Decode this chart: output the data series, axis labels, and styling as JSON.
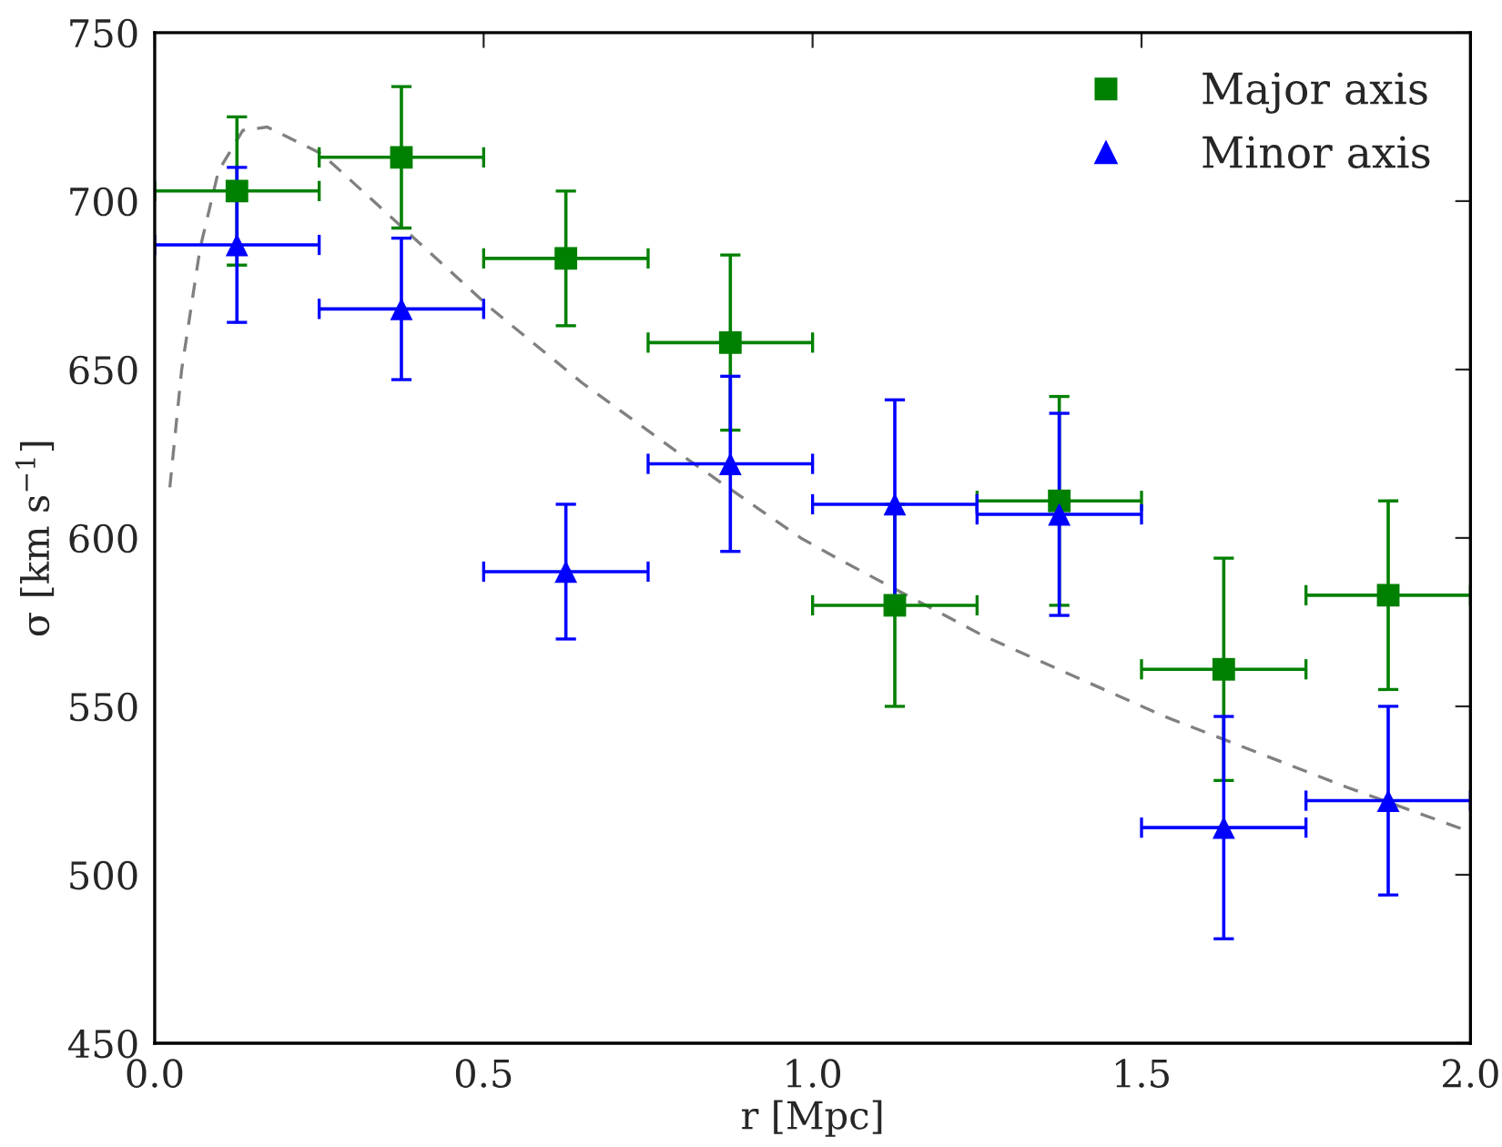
{
  "chart_data": {
    "type": "scatter",
    "xlabel": "r [Mpc]",
    "ylabel": "σ [km s$^{−1}$]",
    "xlim": [
      0,
      2
    ],
    "ylim": [
      450,
      750
    ],
    "xticks": [
      {
        "value": 0,
        "label": "0.0"
      },
      {
        "value": 0.5,
        "label": "0.5"
      },
      {
        "value": 1,
        "label": "1.0"
      },
      {
        "value": 1.5,
        "label": "1.5"
      },
      {
        "value": 2,
        "label": "2.0"
      }
    ],
    "yticks": [
      450,
      500,
      550,
      600,
      650,
      700,
      750
    ],
    "grid": false,
    "legend": "top right",
    "series": [
      {
        "name": "Major axis",
        "marker": "square",
        "color": "#008000",
        "x": [
          0.125,
          0.375,
          0.625,
          0.875,
          1.125,
          1.375,
          1.625,
          1.875
        ],
        "values": [
          703,
          713,
          683,
          658,
          580,
          611,
          561,
          583
        ],
        "errors": [
          22,
          21,
          20,
          26,
          30,
          31,
          33,
          28
        ],
        "xerrors": [
          0.125,
          0.125,
          0.125,
          0.125,
          0.125,
          0.125,
          0.125,
          0.125
        ]
      },
      {
        "name": "Minor axis",
        "marker": "triangle",
        "color": "#0000ff",
        "x": [
          0.125,
          0.375,
          0.625,
          0.875,
          1.125,
          1.375,
          1.625,
          1.875
        ],
        "values": [
          687,
          668,
          590,
          622,
          610,
          607,
          514,
          522
        ],
        "errors": [
          23,
          21,
          20,
          26,
          31,
          30,
          33,
          28
        ],
        "xerrors": [
          0.125,
          0.125,
          0.125,
          0.125,
          0.125,
          0.125,
          0.125,
          0.125
        ]
      },
      {
        "type": "line",
        "line_style": "dashed",
        "marker": "none",
        "color": "#808080",
        "x": [
          0.023,
          0.041,
          0.069,
          0.097,
          0.134,
          0.171,
          0.254,
          0.383,
          0.512,
          0.65,
          0.798,
          0.908,
          0.982,
          1.037,
          1.259,
          1.535,
          1.812,
          1.996
        ],
        "values": [
          615,
          650,
          686,
          709,
          721,
          722,
          714,
          691,
          668,
          646,
          625,
          610,
          600,
          594,
          571,
          547,
          526,
          513
        ]
      }
    ]
  }
}
